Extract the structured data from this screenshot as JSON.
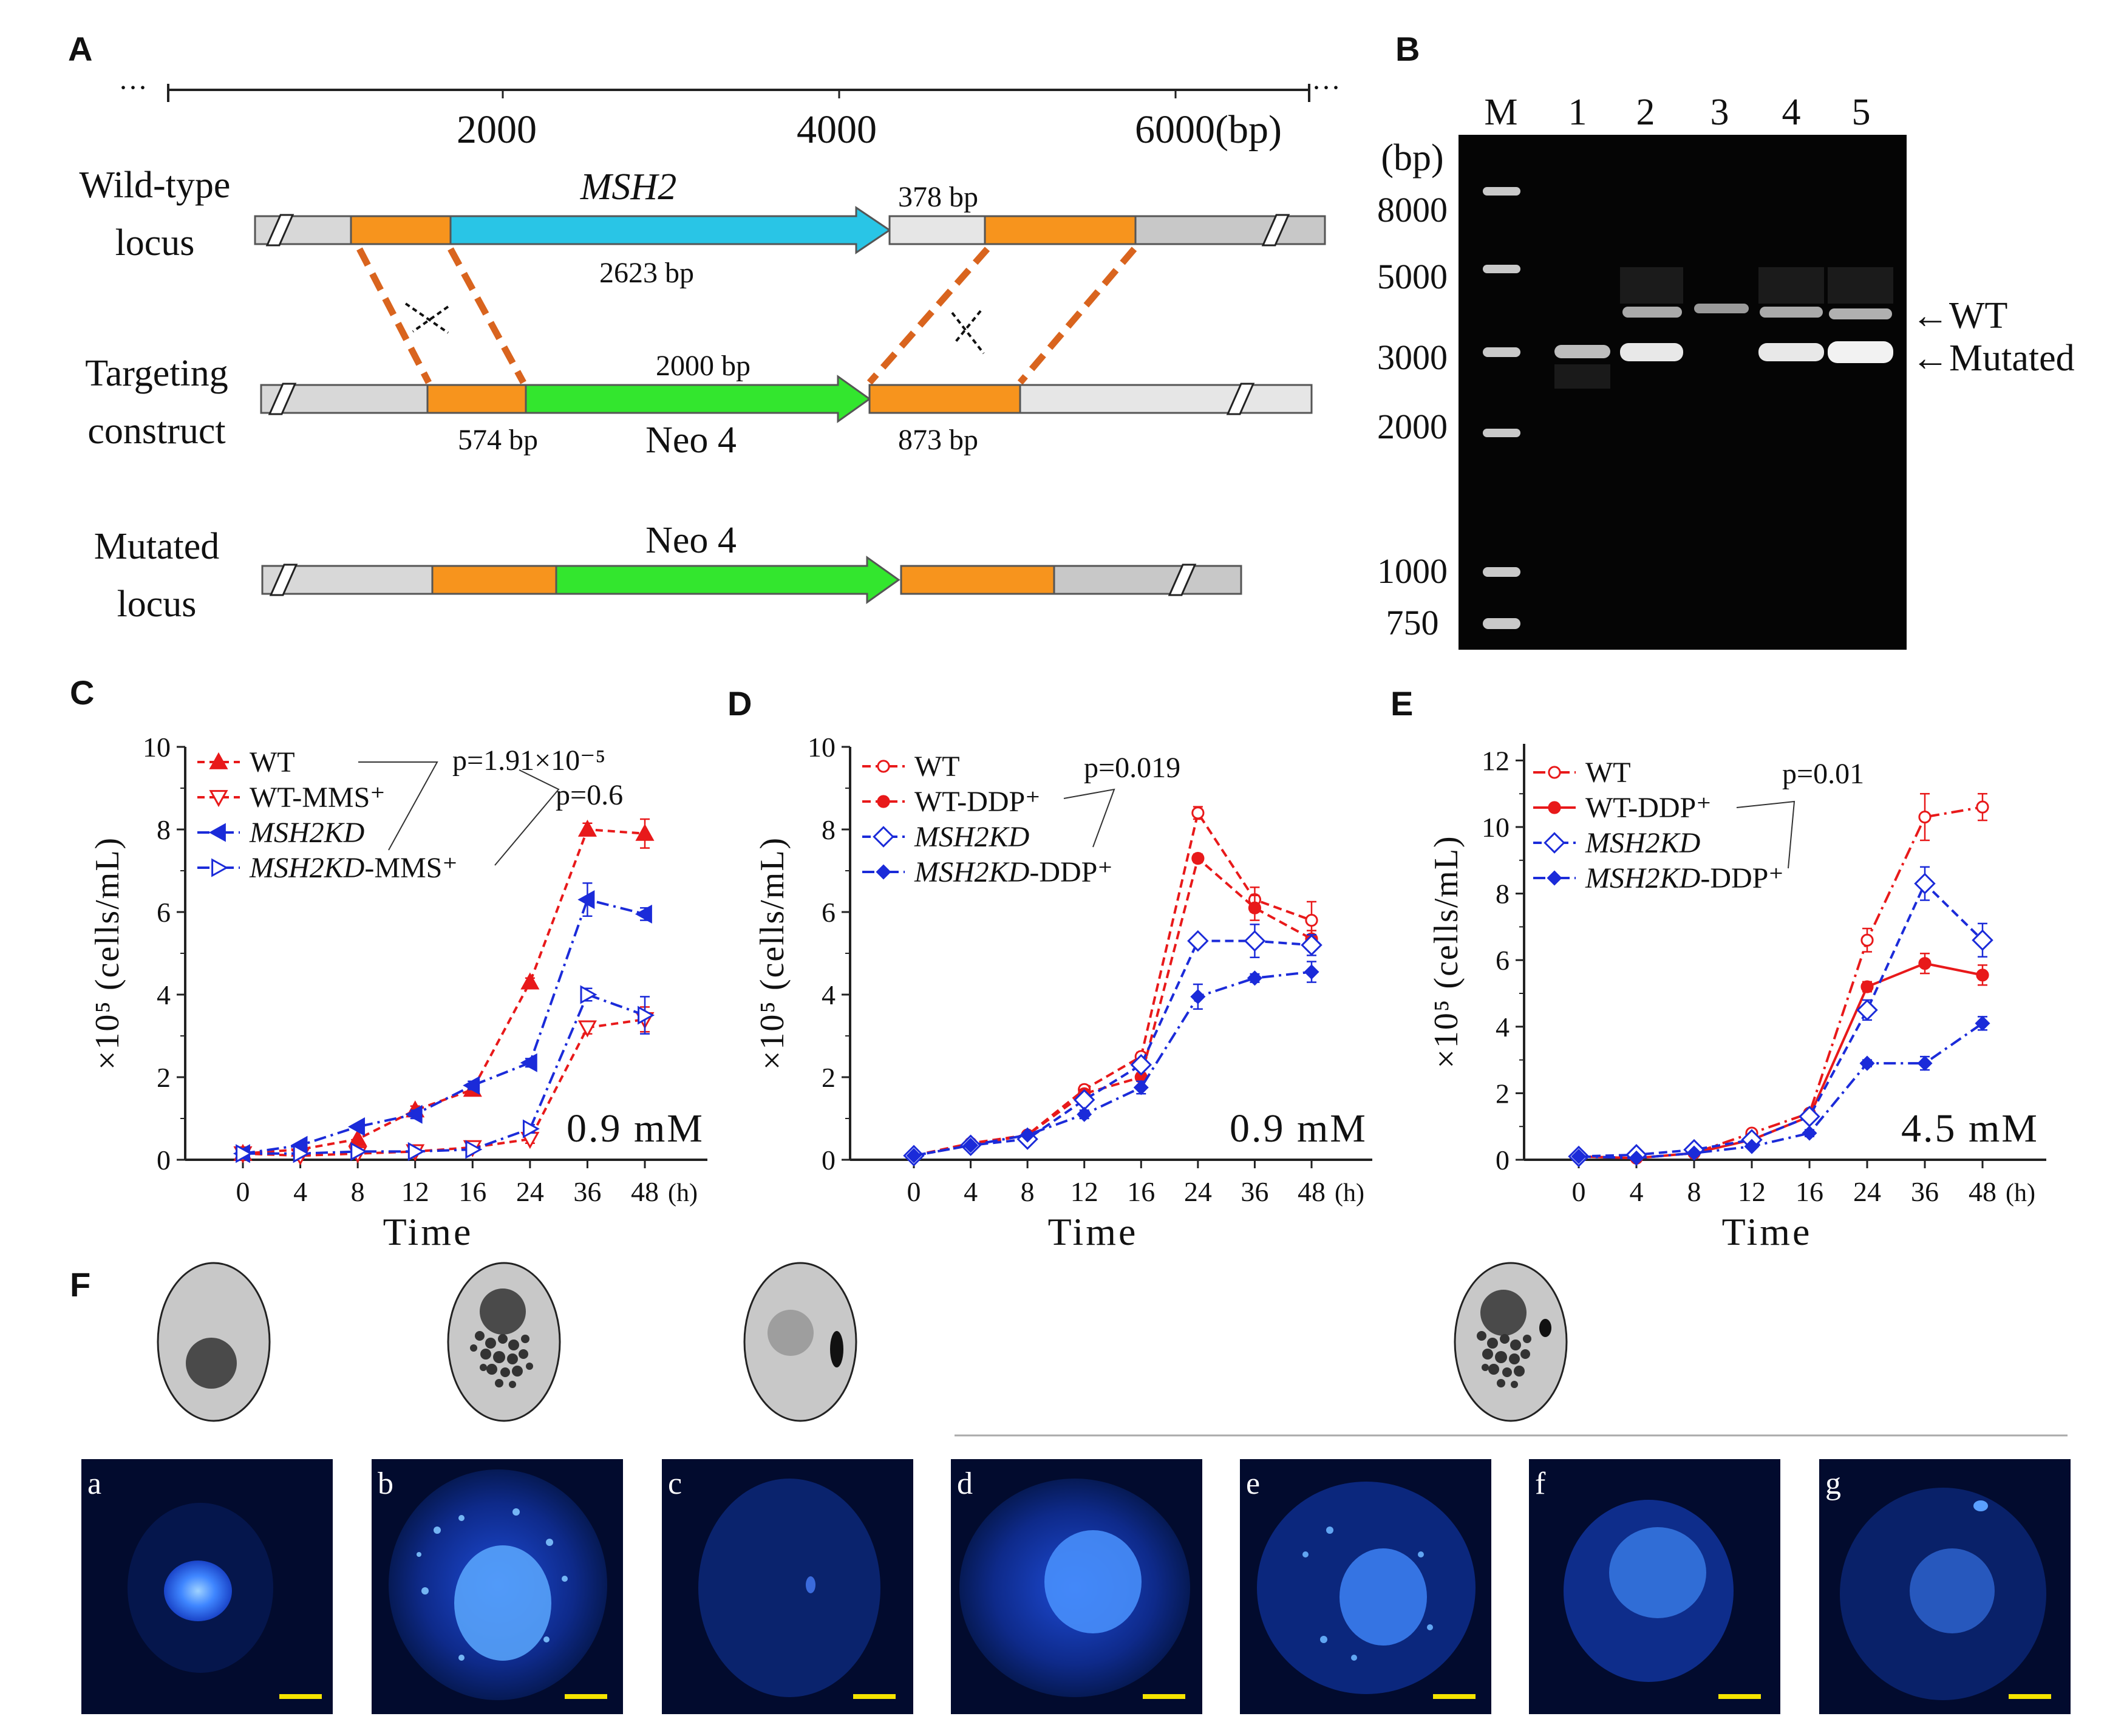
{
  "colors": {
    "orange": "#f7941d",
    "cyan": "#29c5e6",
    "green": "#33e62e",
    "grey": "#d8d8d8",
    "dashOrange": "#d9641e",
    "red": "#e8191a",
    "blue": "#1b2bd9",
    "gel": "#050505",
    "micro_bg": "#020b2e",
    "scalebar": "#f5e400"
  },
  "panelA": {
    "label": "A",
    "ruler": {
      "ticks": [
        "2000",
        "4000",
        "6000(bp)"
      ],
      "left_ellipsis": "···",
      "right_ellipsis": "···"
    },
    "rows": [
      {
        "name_line1": "Wild-type",
        "name_line2": "locus"
      },
      {
        "name_line1": "Targeting",
        "name_line2": "construct"
      },
      {
        "name_line1": "Mutated",
        "name_line2": "locus"
      }
    ],
    "wt_gene": "MSH2",
    "wt_gene_size": "2623 bp",
    "wt_right_size": "378 bp",
    "tc_neo_size": "2000 bp",
    "tc_left_arm": "574 bp",
    "tc_neo_label": "Neo 4",
    "tc_right_arm": "873 bp",
    "mut_neo_label": "Neo 4"
  },
  "panelB": {
    "label": "B",
    "lanes": [
      "M",
      "1",
      "2",
      "3",
      "4",
      "5"
    ],
    "unit": "(bp)",
    "markers": [
      "8000",
      "5000",
      "3000",
      "2000",
      "1000",
      "750"
    ],
    "annotations": [
      "←WT",
      "←Mutated"
    ]
  },
  "chart_data": [
    {
      "panel": "C",
      "type": "line",
      "categories": [
        "0",
        "4",
        "8",
        "12",
        "16",
        "24",
        "36",
        "48"
      ],
      "x_unit": "(h)",
      "xlabel": "Time",
      "ylabel": "×10⁵ (cells/mL)",
      "ylim": [
        0,
        10
      ],
      "yticks": [
        "0",
        "2",
        "4",
        "6",
        "8",
        "10"
      ],
      "annotation": "0.9 mM",
      "pvalues": [
        {
          "text": "p=1.91×10⁻⁵"
        },
        {
          "text": "p=0.6"
        }
      ],
      "series": [
        {
          "name": "WT",
          "color": "#e8191a",
          "dash": "12 8",
          "marker": "tri-up-filled",
          "values": [
            0.15,
            0.25,
            0.5,
            1.2,
            1.7,
            4.3,
            8.0,
            7.9
          ],
          "err": [
            0.05,
            0.05,
            0.05,
            0.1,
            0.1,
            0.1,
            0.15,
            0.35
          ]
        },
        {
          "name": "WT-MMS⁺",
          "color": "#e8191a",
          "dash": "12 8",
          "marker": "tri-down-open",
          "values": [
            0.15,
            0.1,
            0.15,
            0.2,
            0.3,
            0.5,
            3.2,
            3.4
          ],
          "err": [
            0.05,
            0.05,
            0.05,
            0.05,
            0.05,
            0.1,
            0.15,
            0.3
          ]
        },
        {
          "name": "MSH2KD",
          "color": "#1b2bd9",
          "dash": "20 8 4 8",
          "marker": "tri-left-filled",
          "values": [
            0.15,
            0.35,
            0.8,
            1.1,
            1.8,
            2.35,
            6.3,
            5.95
          ],
          "err": [
            0.05,
            0.05,
            0.05,
            0.1,
            0.1,
            0.1,
            0.4,
            0.15
          ]
        },
        {
          "name": "MSH2KD-MMS⁺",
          "color": "#1b2bd9",
          "dash": "20 8 4 8",
          "marker": "tri-right-open",
          "values": [
            0.15,
            0.15,
            0.2,
            0.2,
            0.25,
            0.75,
            4.0,
            3.5
          ],
          "err": [
            0.05,
            0.05,
            0.05,
            0.05,
            0.05,
            0.1,
            0.15,
            0.45
          ]
        }
      ]
    },
    {
      "panel": "D",
      "type": "line",
      "categories": [
        "0",
        "4",
        "8",
        "12",
        "16",
        "24",
        "36",
        "48"
      ],
      "x_unit": "(h)",
      "xlabel": "Time",
      "ylabel": "×10⁵ (cells/mL)",
      "ylim": [
        0,
        10
      ],
      "yticks": [
        "0",
        "2",
        "4",
        "6",
        "8",
        "10"
      ],
      "annotation": "0.9 mM",
      "pvalues": [
        {
          "text": "p=0.019"
        }
      ],
      "series": [
        {
          "name": "WT",
          "color": "#e8191a",
          "dash": "14 8",
          "marker": "circle-open",
          "values": [
            0.1,
            0.4,
            0.6,
            1.7,
            2.5,
            8.4,
            6.3,
            5.8
          ],
          "err": [
            0.05,
            0.05,
            0.05,
            0.1,
            0.1,
            0.15,
            0.3,
            0.45
          ]
        },
        {
          "name": "WT-DDP⁺",
          "color": "#e8191a",
          "dash": "14 8",
          "marker": "circle-filled",
          "values": [
            0.1,
            0.35,
            0.6,
            1.6,
            2.0,
            7.3,
            6.1,
            5.35
          ],
          "err": [
            0.05,
            0.05,
            0.05,
            0.1,
            0.1,
            0.1,
            0.3,
            0.2
          ]
        },
        {
          "name": "MSH2KD",
          "color": "#1b2bd9",
          "dash": "14 8",
          "marker": "diamond-open",
          "values": [
            0.1,
            0.35,
            0.5,
            1.45,
            2.3,
            5.3,
            5.3,
            5.2
          ],
          "err": [
            0.05,
            0.05,
            0.05,
            0.1,
            0.1,
            0.1,
            0.4,
            0.25
          ]
        },
        {
          "name": "MSH2KD-DDP⁺",
          "color": "#1b2bd9",
          "dash": "20 8 4 8",
          "marker": "diamond-filled",
          "values": [
            0.1,
            0.35,
            0.6,
            1.1,
            1.75,
            3.95,
            4.4,
            4.55
          ],
          "err": [
            0.05,
            0.05,
            0.05,
            0.1,
            0.15,
            0.3,
            0.1,
            0.25
          ]
        }
      ]
    },
    {
      "panel": "E",
      "type": "line",
      "categories": [
        "0",
        "4",
        "8",
        "12",
        "16",
        "24",
        "36",
        "48"
      ],
      "x_unit": "(h)",
      "xlabel": "Time",
      "ylabel": "×10⁵ (cells/mL)",
      "ylim": [
        0,
        12.5
      ],
      "yticks": [
        "0",
        "2",
        "4",
        "6",
        "8",
        "10",
        "12"
      ],
      "annotation": "4.5 mM",
      "pvalues": [
        {
          "text": "p=0.01"
        }
      ],
      "series": [
        {
          "name": "WT",
          "color": "#e8191a",
          "dash": "20 8 4 8",
          "marker": "circle-open",
          "values": [
            0.1,
            0.05,
            0.2,
            0.8,
            1.4,
            6.6,
            10.3,
            10.6
          ],
          "err": [
            0.05,
            0.05,
            0.05,
            0.1,
            0.1,
            0.35,
            0.7,
            0.4
          ]
        },
        {
          "name": "WT-DDP⁺",
          "color": "#e8191a",
          "dash": "",
          "marker": "circle-filled",
          "values": [
            0.1,
            0.05,
            0.2,
            0.6,
            1.3,
            5.2,
            5.9,
            5.55
          ],
          "err": [
            0.05,
            0.05,
            0.05,
            0.1,
            0.1,
            0.15,
            0.3,
            0.3
          ]
        },
        {
          "name": "MSH2KD",
          "color": "#1b2bd9",
          "dash": "14 8",
          "marker": "diamond-open",
          "values": [
            0.1,
            0.15,
            0.3,
            0.6,
            1.3,
            4.5,
            8.3,
            6.6
          ],
          "err": [
            0.05,
            0.05,
            0.05,
            0.1,
            0.1,
            0.3,
            0.5,
            0.5
          ]
        },
        {
          "name": "MSH2KD-DDP⁺",
          "color": "#1b2bd9",
          "dash": "20 8 4 8",
          "marker": "diamond-filled",
          "values": [
            0.1,
            0.05,
            0.2,
            0.4,
            0.8,
            2.9,
            2.9,
            4.1
          ],
          "err": [
            0.05,
            0.05,
            0.05,
            0.05,
            0.1,
            0.1,
            0.2,
            0.2
          ]
        }
      ]
    }
  ],
  "panelF": {
    "label": "F",
    "micrographs": [
      "a",
      "b",
      "c",
      "d",
      "e",
      "f",
      "g"
    ]
  }
}
